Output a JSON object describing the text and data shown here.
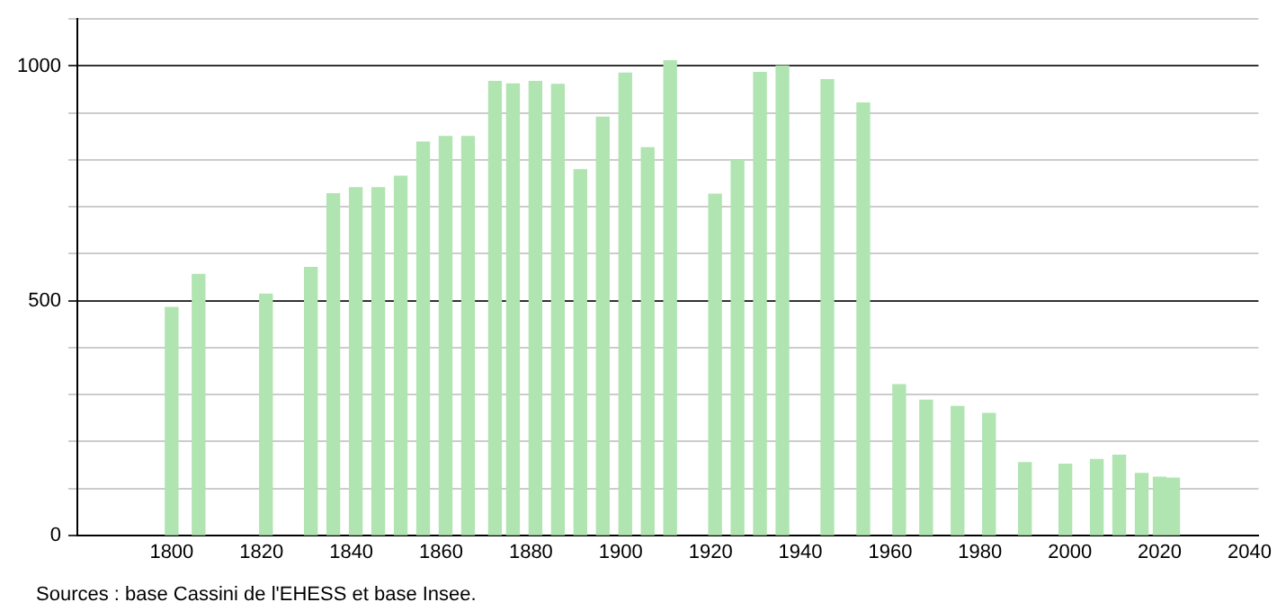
{
  "chart_data": {
    "type": "bar",
    "color": "#b0e4b0",
    "x": [
      1800,
      1806,
      1821,
      1831,
      1836,
      1841,
      1846,
      1851,
      1856,
      1861,
      1866,
      1872,
      1876,
      1881,
      1886,
      1891,
      1896,
      1901,
      1906,
      1911,
      1921,
      1926,
      1931,
      1936,
      1946,
      1954,
      1962,
      1968,
      1975,
      1982,
      1990,
      1999,
      2006,
      2011,
      2016,
      2020,
      2023
    ],
    "values": [
      486,
      556,
      514,
      571,
      728,
      741,
      741,
      765,
      838,
      850,
      850,
      967,
      962,
      967,
      961,
      779,
      891,
      985,
      826,
      1011,
      727,
      799,
      986,
      1000,
      971,
      921,
      321,
      288,
      275,
      260,
      155,
      152,
      162,
      171,
      132,
      124,
      122
    ],
    "xlim": [
      1779,
      2042
    ],
    "xticks": [
      1800,
      1820,
      1840,
      1860,
      1880,
      1900,
      1920,
      1940,
      1960,
      1980,
      2000,
      2020,
      2040
    ],
    "ylim": [
      0,
      1100
    ],
    "yticks": [
      0,
      {
        "value": 100,
        "label": null
      },
      {
        "value": 200,
        "label": null
      },
      {
        "value": 300,
        "label": null
      },
      {
        "value": 400,
        "label": null
      },
      500,
      {
        "value": 600,
        "label": null
      },
      {
        "value": 700,
        "label": null
      },
      {
        "value": 800,
        "label": null
      },
      {
        "value": 900,
        "label": null
      },
      1000,
      {
        "value": 1100,
        "label": null
      }
    ],
    "grid": "y",
    "annotations": [
      "Sources : base Cassini de l'EHESS et base Insee."
    ]
  }
}
